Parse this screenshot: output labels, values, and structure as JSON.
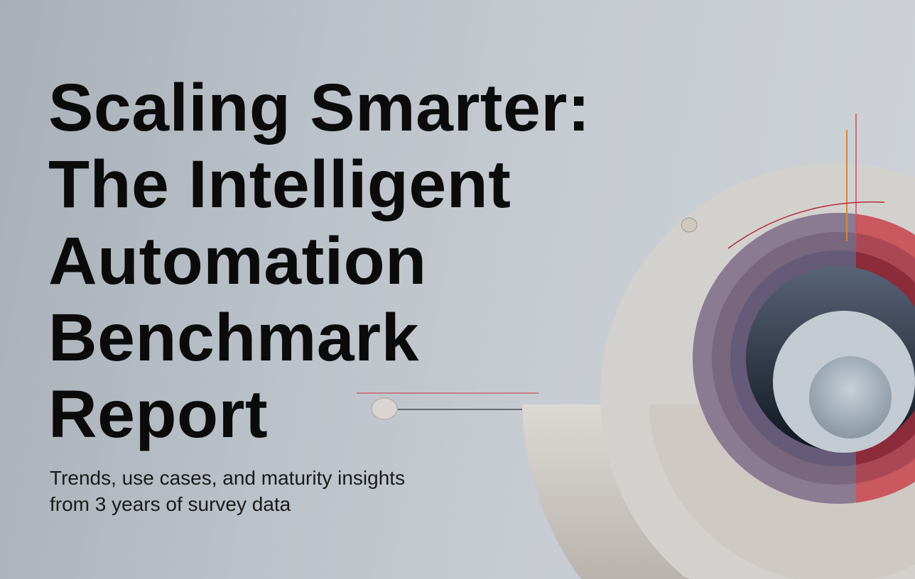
{
  "cover": {
    "title_lines": [
      "Scaling Smarter:",
      "The Intelligent",
      "Automation",
      "Benchmark",
      "Report"
    ],
    "subtitle_lines": [
      "Trends, use cases, and maturity insights",
      "from 3 years of survey data"
    ]
  },
  "colors": {
    "background": "#bcc2c9",
    "text": "#0b0b0b",
    "accent_red": "#c9505c",
    "accent_purple": "#8a7a92",
    "accent_orange": "#d0883c",
    "cream": "#d8d4cf"
  }
}
